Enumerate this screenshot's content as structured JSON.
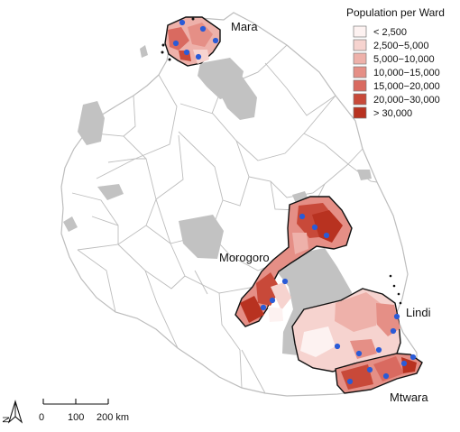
{
  "map": {
    "regions": [
      {
        "name": "Mara"
      },
      {
        "name": "Morogoro"
      },
      {
        "name": "Lindi"
      },
      {
        "name": "Mtwara"
      }
    ],
    "legend": {
      "title": "Population per Ward",
      "items": [
        {
          "label": "< 2,500",
          "color": "#fdf2f1"
        },
        {
          "label": "2,500−5,000",
          "color": "#f6d3cf"
        },
        {
          "label": "5,000−10,000",
          "color": "#eeb1aa"
        },
        {
          "label": "10,000−15,000",
          "color": "#e58f86"
        },
        {
          "label": "15,000−20,000",
          "color": "#d96a60"
        },
        {
          "label": "20,000−30,000",
          "color": "#c84939"
        },
        {
          "label": "> 30,000",
          "color": "#b83220"
        }
      ]
    },
    "scale_bar": {
      "ticks": [
        "0",
        "100",
        "200 km"
      ]
    },
    "north_arrow": {
      "label": "N"
    },
    "colors": {
      "country_fill": "#ffffff",
      "boundary": "#bdbdbd",
      "lakes": "#c2c2c2",
      "study_outline": "#111111",
      "points": "#2a5bd7"
    }
  }
}
